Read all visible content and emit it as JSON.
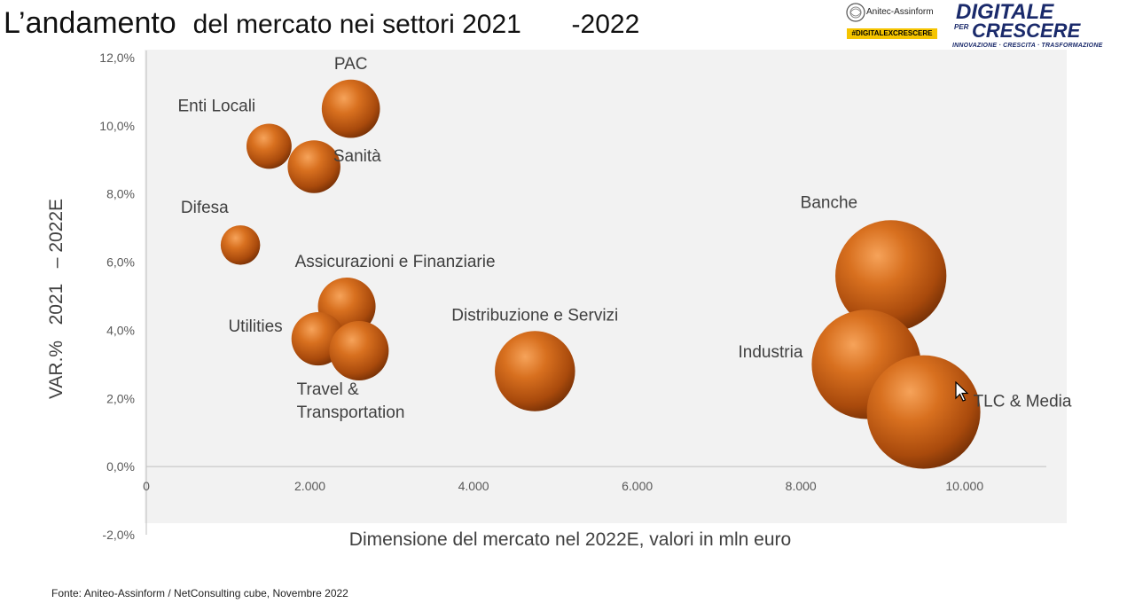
{
  "slide": {
    "title_main": "L’andamento",
    "title_rest": "del mercato nei settori 2021",
    "title_year": "-2022",
    "source": "Fonte: Aniteo-Assinform / NetConsulting cube, Novembre  2022"
  },
  "logos": {
    "anitec_name": "Anitec-Assinform",
    "anitec_hashtag": "#DIGITALEXCRESCERE",
    "digitale_line1": "DIGITALE",
    "digitale_per": "PER",
    "digitale_line2": "CRESCERE",
    "digitale_tagline": "INNOVAZIONE · CRESCITA · TRASFORMAZIONE"
  },
  "chart_data": {
    "type": "bubble",
    "title": "",
    "xlabel": "Dimensione del mercato nel 2022E, valori in mln euro",
    "ylabel": "VAR.%   2021   – 2022E",
    "xlim": [
      0,
      11000
    ],
    "ylim": [
      -2,
      12
    ],
    "x_ticks": [
      {
        "value": 0,
        "label": "0"
      },
      {
        "value": 2000,
        "label": "2.000"
      },
      {
        "value": 4000,
        "label": "4.000"
      },
      {
        "value": 6000,
        "label": "6.000"
      },
      {
        "value": 8000,
        "label": "8.000"
      },
      {
        "value": 10000,
        "label": "10.000"
      }
    ],
    "y_ticks": [
      {
        "value": -2,
        "label": "-2,0%"
      },
      {
        "value": 0,
        "label": "0,0%"
      },
      {
        "value": 2,
        "label": "2,0%"
      },
      {
        "value": 4,
        "label": "4,0%"
      },
      {
        "value": 6,
        "label": "6,0%"
      },
      {
        "value": 8,
        "label": "8,0%"
      },
      {
        "value": 10,
        "label": "10,0%"
      },
      {
        "value": 12,
        "label": "12,0%"
      }
    ],
    "bubble_color": "#c8611a",
    "points": [
      {
        "name": "PAC",
        "label_lines": [
          "PAC"
        ],
        "label_pos": "above",
        "x": 2500,
        "y": 10.5,
        "size": 2500
      },
      {
        "name": "Enti Locali",
        "label_lines": [
          "Enti Locali"
        ],
        "label_pos": "above-left",
        "x": 1500,
        "y": 9.4,
        "size": 1500
      },
      {
        "name": "Sanità",
        "label_lines": [
          "Sanità"
        ],
        "label_pos": "right",
        "x": 2050,
        "y": 8.8,
        "size": 2050
      },
      {
        "name": "Difesa",
        "label_lines": [
          "Difesa"
        ],
        "label_pos": "above-left",
        "x": 1150,
        "y": 6.5,
        "size": 1150
      },
      {
        "name": "Assicurazioni e Finanziarie",
        "label_lines": [
          "Assicurazioni e Finanziarie"
        ],
        "label_pos": "above-right",
        "x": 2450,
        "y": 4.7,
        "size": 2450
      },
      {
        "name": "Utilities",
        "label_lines": [
          "Utilities"
        ],
        "label_pos": "left",
        "x": 2100,
        "y": 3.75,
        "size": 2100
      },
      {
        "name": "Travel & Transportation",
        "label_lines": [
          "Travel &",
          "Transportation"
        ],
        "label_pos": "below",
        "x": 2600,
        "y": 3.4,
        "size": 2600
      },
      {
        "name": "Distribuzione e Servizi",
        "label_lines": [
          "Distribuzione e Servizi"
        ],
        "label_pos": "above",
        "x": 4750,
        "y": 2.8,
        "size": 4750
      },
      {
        "name": "Banche",
        "label_lines": [
          "Banche"
        ],
        "label_pos": "above-left",
        "x": 9100,
        "y": 5.6,
        "size": 9100
      },
      {
        "name": "Industria",
        "label_lines": [
          "Industria"
        ],
        "label_pos": "left",
        "x": 8800,
        "y": 3.0,
        "size": 8800
      },
      {
        "name": "TLC & Media",
        "label_lines": [
          "TLC & Media"
        ],
        "label_pos": "right",
        "x": 9500,
        "y": 1.6,
        "size": 9500
      }
    ]
  }
}
